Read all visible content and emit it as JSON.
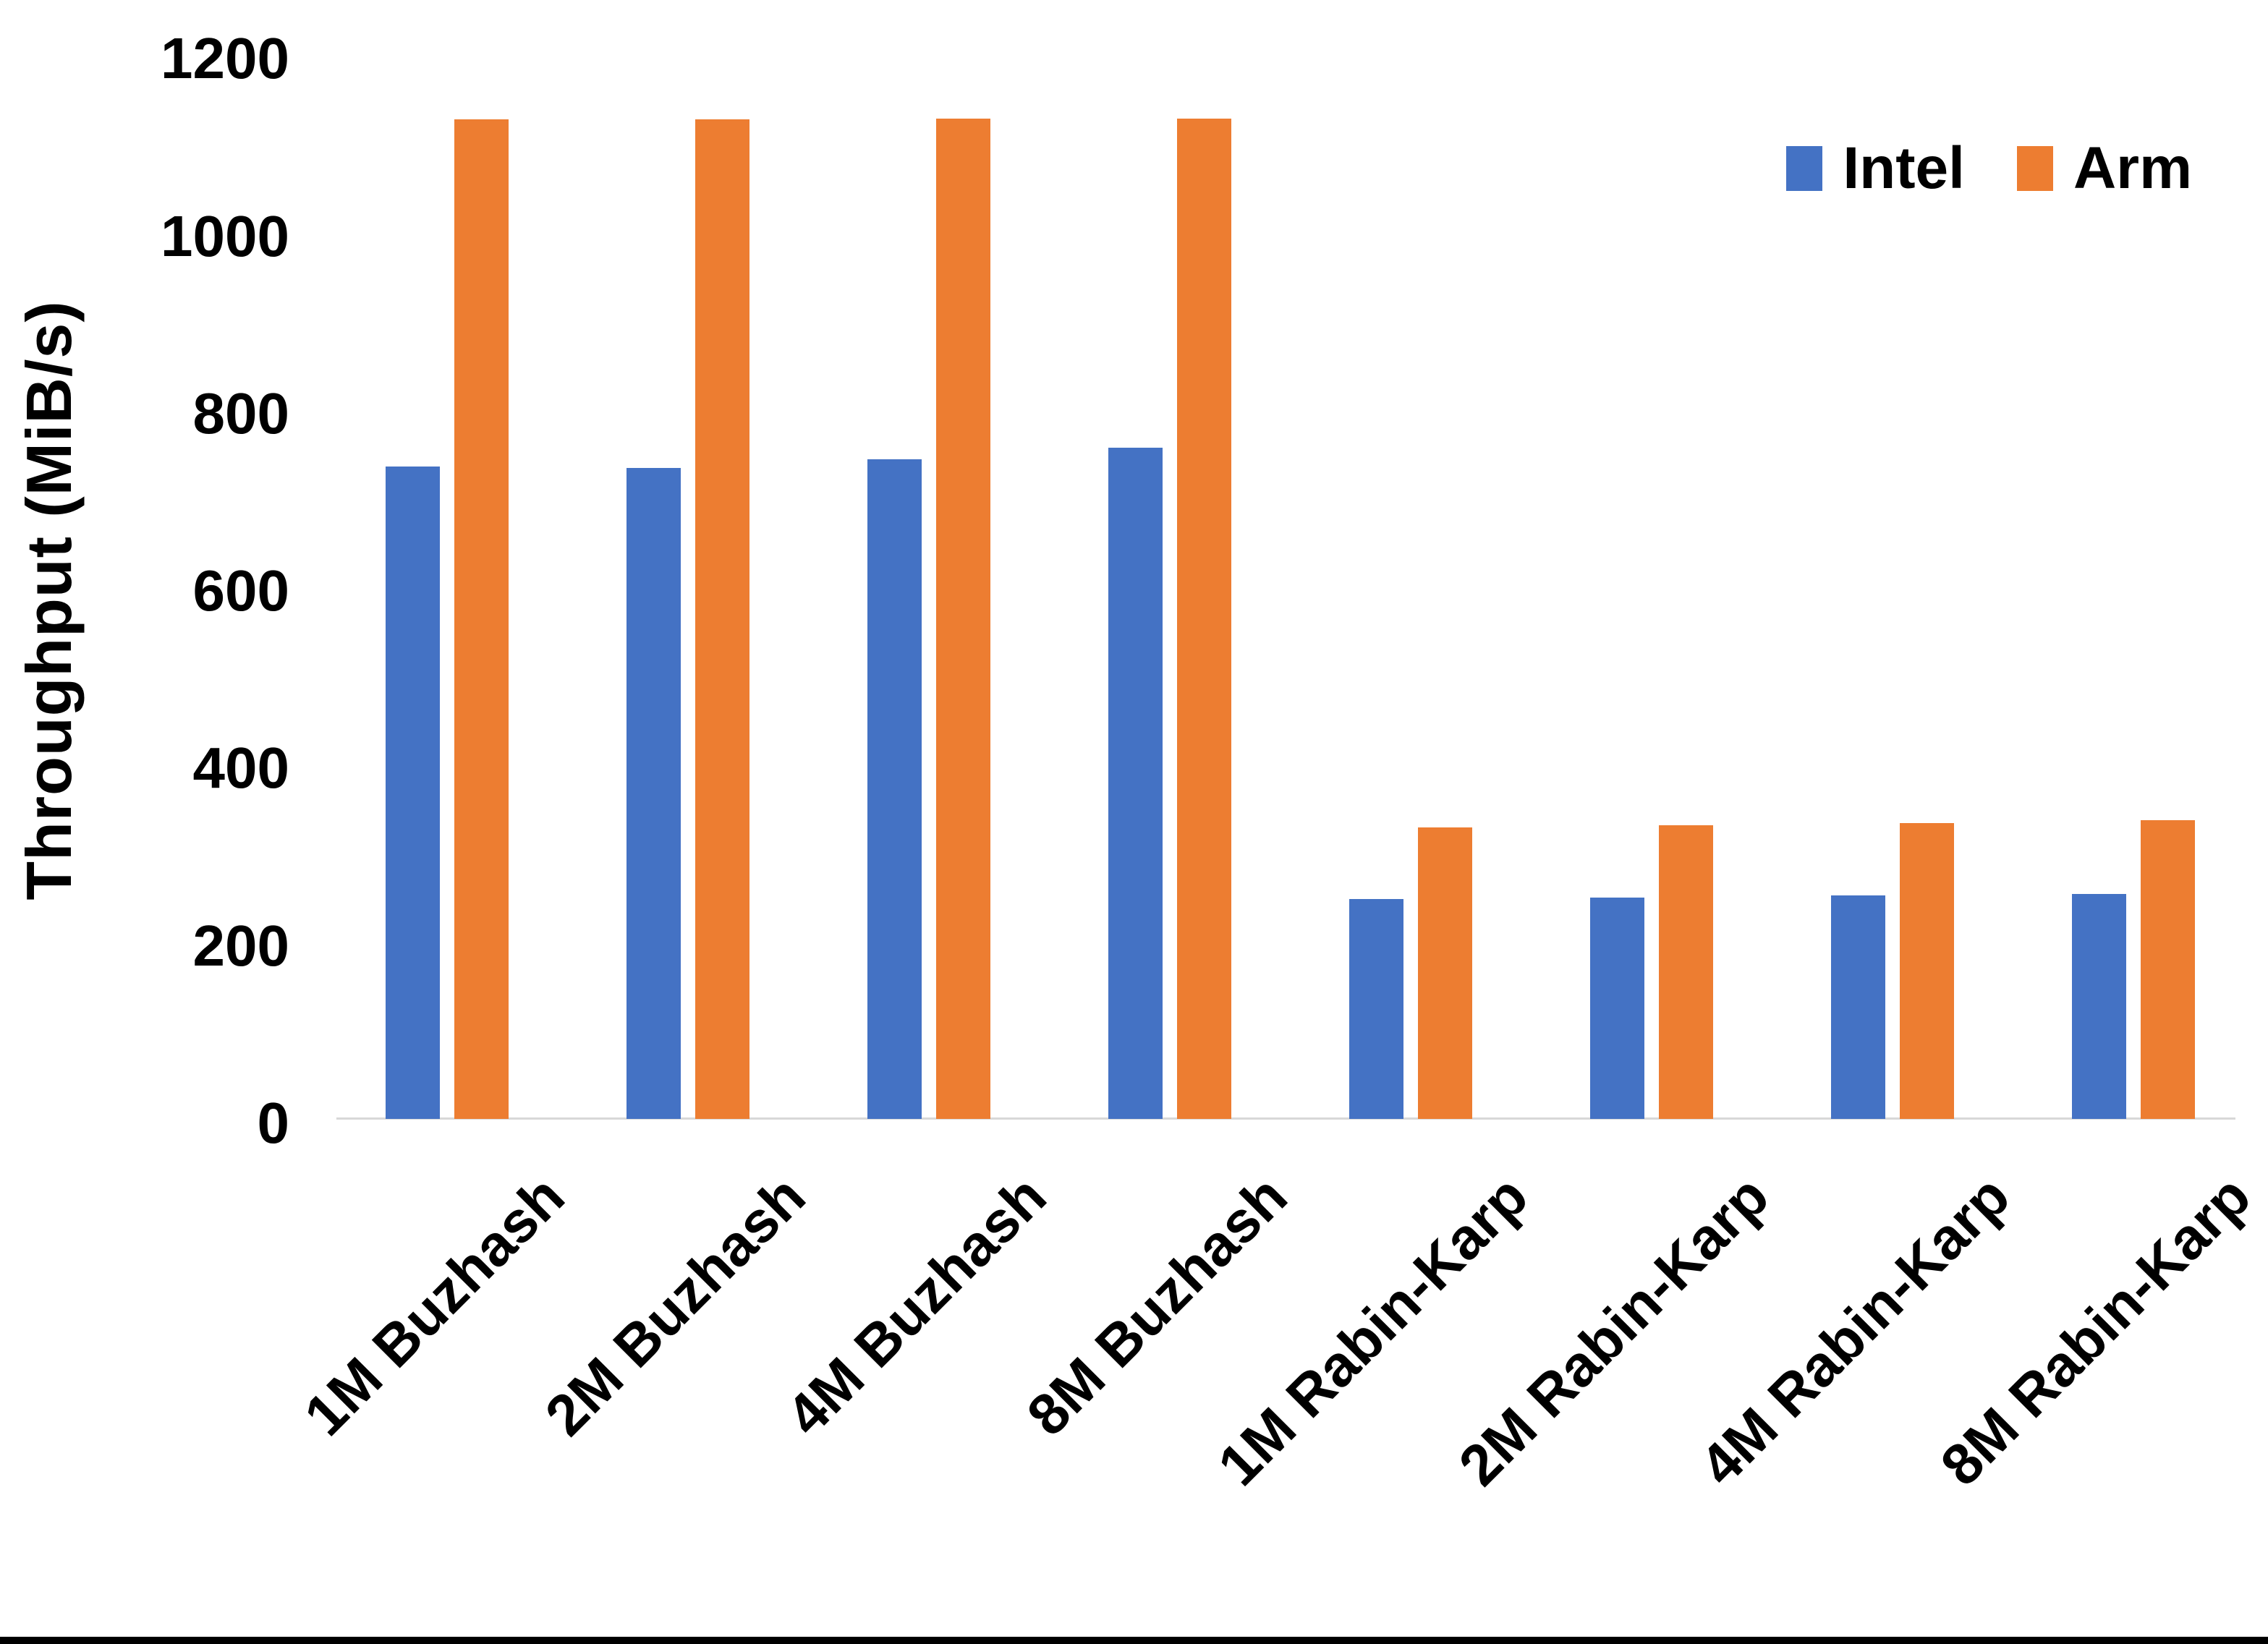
{
  "chart_data": {
    "type": "bar",
    "title": "",
    "xlabel": "",
    "ylabel": "Throughput (MiB/s)",
    "ylim": [
      0,
      1200
    ],
    "yticks": [
      0,
      200,
      400,
      600,
      800,
      1000,
      1200
    ],
    "grid": false,
    "legend_position": "top-right",
    "categories": [
      "1M Buzhash",
      "2M Buzhash",
      "4M Buzhash",
      "8M Buzhash",
      "1M Rabin-Karp",
      "2M Rabin-Karp",
      "4M Rabin-Karp",
      "8M Rabin-Karp"
    ],
    "series": [
      {
        "name": "Intel",
        "color": "#4472C4",
        "values": [
          736,
          734,
          744,
          757,
          248,
          250,
          252,
          254
        ]
      },
      {
        "name": "Arm",
        "color": "#ED7D31",
        "values": [
          1127,
          1127,
          1128,
          1128,
          329,
          331,
          334,
          337
        ]
      }
    ],
    "axis_line_color": "#d8d8d8",
    "bottom_border_color": "#000000"
  }
}
